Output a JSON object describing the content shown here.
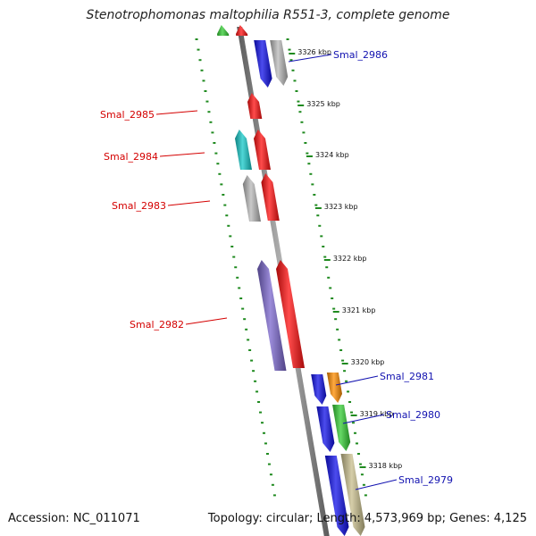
{
  "figure": {
    "title": "Stenotrophomonas maltophilia R551-3, complete genome",
    "accession": "Accession: NC_011071",
    "summary": "Topology: circular; Length: 4,573,969 bp; Genes: 4,125"
  },
  "colors": {
    "backbone": "#8c8c8c",
    "tick": "#1f8a1f",
    "label_red": "#d40000",
    "label_blue": "#1212b0"
  },
  "kbp_labels": [
    "3326 kbp",
    "3325 kbp",
    "3324 kbp",
    "3323 kbp",
    "3322 kbp",
    "3321 kbp",
    "3320 kbp",
    "3319 kbp",
    "3318 kbp"
  ],
  "gene_labels": [
    {
      "text": "Smal_2986",
      "color": "blue"
    },
    {
      "text": "Smal_2985",
      "color": "red"
    },
    {
      "text": "Smal_2984",
      "color": "red"
    },
    {
      "text": "Smal_2983",
      "color": "red"
    },
    {
      "text": "Smal_2982",
      "color": "red"
    },
    {
      "text": "Smal_2981",
      "color": "blue"
    },
    {
      "text": "Smal_2980",
      "color": "blue"
    },
    {
      "text": "Smal_2979",
      "color": "blue"
    }
  ],
  "genes": [
    {
      "track": "outer-left",
      "color": "green",
      "strand": "up"
    },
    {
      "track": "inner-left",
      "color": "red",
      "strand": "up"
    },
    {
      "track": "inner-right",
      "color": "blue",
      "strand": "down"
    },
    {
      "track": "outer-right",
      "color": "grey",
      "strand": "down"
    },
    {
      "track": "inner-left",
      "color": "red",
      "strand": "up"
    },
    {
      "track": "outer-left",
      "color": "cyan",
      "strand": "up"
    },
    {
      "track": "inner-left",
      "color": "red",
      "strand": "up"
    },
    {
      "track": "outer-left",
      "color": "grey",
      "strand": "up"
    },
    {
      "track": "inner-left",
      "color": "red",
      "strand": "up"
    },
    {
      "track": "outer-left",
      "color": "purple",
      "strand": "up"
    },
    {
      "track": "inner-left",
      "color": "red",
      "strand": "up"
    },
    {
      "track": "inner-right",
      "color": "blue",
      "strand": "down"
    },
    {
      "track": "outer-right",
      "color": "orange",
      "strand": "down"
    },
    {
      "track": "inner-right",
      "color": "blue",
      "strand": "down"
    },
    {
      "track": "outer-right",
      "color": "green",
      "strand": "down"
    },
    {
      "track": "inner-right",
      "color": "blue",
      "strand": "down"
    },
    {
      "track": "outer-right",
      "color": "khaki",
      "strand": "down"
    }
  ],
  "palette": {
    "green": "#33cc33",
    "red": "#ff1010",
    "blue": "#1010e8",
    "grey": "#b8b8b8",
    "cyan": "#14c8c8",
    "purple": "#7a66cc",
    "orange": "#ff8c00",
    "khaki": "#c8be8c"
  }
}
